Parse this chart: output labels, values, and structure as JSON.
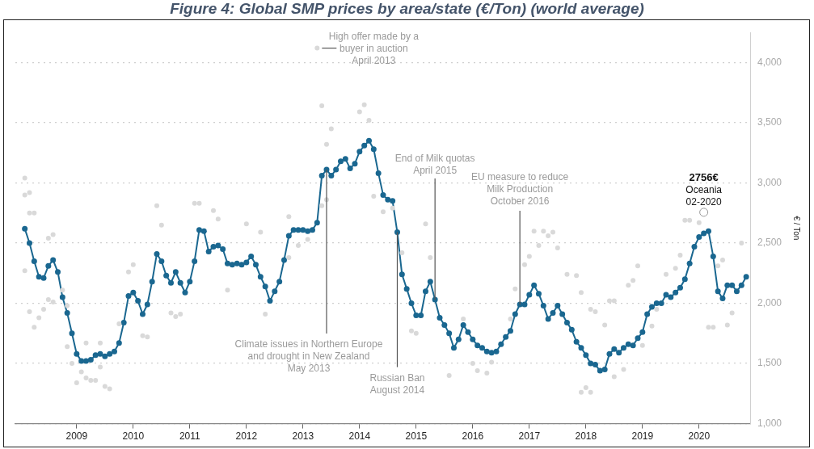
{
  "chart_data": {
    "type": "line",
    "title": "Figure 4: Global SMP prices by area/state (€/Ton) (world average)",
    "ylabel": "€ / Ton",
    "x": [
      "2008-02",
      "2008-03",
      "2008-04",
      "2008-05",
      "2008-06",
      "2008-07",
      "2008-08",
      "2008-09",
      "2008-10",
      "2008-11",
      "2008-12",
      "2009-01",
      "2009-02",
      "2009-03",
      "2009-04",
      "2009-05",
      "2009-06",
      "2009-07",
      "2009-08",
      "2009-09",
      "2009-10",
      "2009-11",
      "2009-12",
      "2010-01",
      "2010-02",
      "2010-03",
      "2010-04",
      "2010-05",
      "2010-06",
      "2010-07",
      "2010-08",
      "2010-09",
      "2010-10",
      "2010-11",
      "2010-12",
      "2011-01",
      "2011-02",
      "2011-03",
      "2011-04",
      "2011-05",
      "2011-06",
      "2011-07",
      "2011-08",
      "2011-09",
      "2011-10",
      "2011-11",
      "2011-12",
      "2012-01",
      "2012-02",
      "2012-03",
      "2012-04",
      "2012-05",
      "2012-06",
      "2012-07",
      "2012-08",
      "2012-09",
      "2012-10",
      "2012-11",
      "2012-12",
      "2013-01",
      "2013-02",
      "2013-03",
      "2013-04",
      "2013-05",
      "2013-06",
      "2013-07",
      "2013-08",
      "2013-09",
      "2013-10",
      "2013-11",
      "2013-12",
      "2014-01",
      "2014-02",
      "2014-03",
      "2014-04",
      "2014-05",
      "2014-06",
      "2014-07",
      "2014-08",
      "2014-09",
      "2014-10",
      "2014-11",
      "2014-12",
      "2015-01",
      "2015-02",
      "2015-03",
      "2015-04",
      "2015-05",
      "2015-06",
      "2015-07",
      "2015-08",
      "2015-09",
      "2015-10",
      "2015-11",
      "2015-12",
      "2016-01",
      "2016-02",
      "2016-03",
      "2016-04",
      "2016-05",
      "2016-06",
      "2016-07",
      "2016-08",
      "2016-09",
      "2016-10",
      "2016-11",
      "2016-12",
      "2017-01",
      "2017-02",
      "2017-03",
      "2017-04",
      "2017-05",
      "2017-06",
      "2017-07",
      "2017-08",
      "2017-09",
      "2017-10",
      "2017-11",
      "2017-12",
      "2018-01",
      "2018-02",
      "2018-03",
      "2018-04",
      "2018-05",
      "2018-06",
      "2018-07",
      "2018-08",
      "2018-09",
      "2018-10",
      "2018-11",
      "2018-12",
      "2019-01",
      "2019-02",
      "2019-03",
      "2019-04",
      "2019-05",
      "2019-06",
      "2019-07",
      "2019-08",
      "2019-09",
      "2019-10",
      "2019-11",
      "2019-12",
      "2020-01",
      "2020-02",
      "2020-03",
      "2020-04",
      "2020-05",
      "2020-06",
      "2020-07",
      "2020-08",
      "2020-09",
      "2020-10",
      "2020-11"
    ],
    "series": [
      {
        "type": "scatter",
        "color": "#d9d9d9",
        "x": [
          "2008-02",
          "2008-02",
          "2008-03",
          "2008-03",
          "2008-04",
          "2008-02",
          "2008-03",
          "2008-04",
          "2008-05",
          "2008-06",
          "2008-07",
          "2008-08",
          "2008-07",
          "2008-08",
          "2008-10",
          "2008-11",
          "2008-11",
          "2008-12",
          "2009-01",
          "2009-02",
          "2009-03",
          "2009-04",
          "2009-05",
          "2009-06",
          "2009-07",
          "2009-08",
          "2009-03",
          "2009-06",
          "2009-10",
          "2009-12",
          "2010-01",
          "2010-03",
          "2010-04",
          "2010-06",
          "2010-07",
          "2010-09",
          "2010-10",
          "2010-11",
          "2011-02",
          "2011-03",
          "2011-06",
          "2011-07",
          "2011-09",
          "2012-01",
          "2012-04",
          "2012-05",
          "2013-04",
          "2013-05",
          "2014-02",
          "2014-01",
          "2014-03",
          "2013-07",
          "2013-06",
          "2013-05",
          "2013-06",
          "2012-10",
          "2012-12",
          "2013-02",
          "2012-10",
          "2014-04",
          "2014-06",
          "2014-08",
          "2014-10",
          "2014-12",
          "2015-01",
          "2015-03",
          "2015-04",
          "2015-08",
          "2015-11",
          "2016-01",
          "2016-02",
          "2016-04",
          "2016-05",
          "2016-12",
          "2016-10",
          "2016-09",
          "2017-02",
          "2017-04",
          "2017-05",
          "2017-06",
          "2017-07",
          "2017-03",
          "2017-01",
          "2017-09",
          "2017-11",
          "2017-12",
          "2018-02",
          "2018-03",
          "2017-12",
          "2018-02",
          "2018-01",
          "2018-05",
          "2018-06",
          "2018-07",
          "2018-07",
          "2018-09",
          "2018-10",
          "2018-11",
          "2018-12",
          "2019-01",
          "2019-03",
          "2019-04",
          "2019-06",
          "2019-08",
          "2019-09",
          "2019-10",
          "2019-11",
          "2020-01",
          "2020-03",
          "2020-04",
          "2020-05",
          "2020-06",
          "2020-07",
          "2020-08",
          "2020-10"
        ],
        "values": [
          3040,
          2900,
          2920,
          2750,
          2750,
          2270,
          1930,
          1800,
          1880,
          1950,
          2540,
          2570,
          2030,
          2010,
          2110,
          1980,
          1640,
          1500,
          1340,
          1430,
          1380,
          1360,
          1360,
          1470,
          1310,
          1290,
          1670,
          1670,
          1830,
          2260,
          2320,
          1730,
          1720,
          2810,
          2650,
          1920,
          1890,
          1910,
          2830,
          2830,
          2770,
          2700,
          2110,
          2660,
          2590,
          1910,
          4120,
          3640,
          3650,
          3590,
          3520,
          3450,
          3320,
          2810,
          2860,
          2720,
          2480,
          2530,
          2380,
          2890,
          2760,
          2790,
          2420,
          1770,
          1750,
          2660,
          2380,
          1400,
          1870,
          1500,
          1440,
          1420,
          1510,
          2320,
          2120,
          1870,
          2600,
          2600,
          2560,
          2590,
          2460,
          2480,
          2390,
          2240,
          2230,
          2090,
          1950,
          1930,
          1260,
          1260,
          1300,
          1820,
          2020,
          2020,
          1390,
          1450,
          2150,
          2190,
          2310,
          1650,
          1810,
          1950,
          2240,
          2290,
          2400,
          2690,
          2690,
          2670,
          1800,
          1800,
          2310,
          2360,
          1820,
          1920,
          2500
        ]
      },
      {
        "type": "scatter",
        "color": "#999999",
        "x": [
          "2020-02"
        ],
        "values": [
          2756
        ]
      },
      {
        "color": "#1a6790",
        "values": [
          2620,
          2500,
          2350,
          2220,
          2210,
          2310,
          2360,
          2260,
          2050,
          1920,
          1750,
          1580,
          1520,
          1520,
          1530,
          1570,
          1580,
          1560,
          1580,
          1600,
          1670,
          1840,
          2060,
          2090,
          2020,
          1910,
          1990,
          2180,
          2410,
          2350,
          2230,
          2170,
          2260,
          2170,
          2090,
          2180,
          2350,
          2610,
          2600,
          2430,
          2470,
          2480,
          2450,
          2330,
          2320,
          2330,
          2320,
          2340,
          2390,
          2320,
          2220,
          2140,
          2020,
          2100,
          2180,
          2360,
          2560,
          2610,
          2610,
          2610,
          2600,
          2610,
          2670,
          3060,
          3110,
          3060,
          3110,
          3180,
          3200,
          3120,
          3160,
          3260,
          3310,
          3350,
          3280,
          3080,
          2900,
          2860,
          2850,
          2590,
          2240,
          2120,
          2000,
          1900,
          1900,
          2100,
          2180,
          2030,
          1880,
          1820,
          1750,
          1630,
          1700,
          1820,
          1760,
          1700,
          1650,
          1630,
          1600,
          1590,
          1600,
          1660,
          1720,
          1770,
          1910,
          1990,
          1990,
          2070,
          2150,
          2080,
          1980,
          1870,
          1920,
          1980,
          1910,
          1840,
          1780,
          1680,
          1630,
          1570,
          1500,
          1490,
          1440,
          1450,
          1580,
          1620,
          1590,
          1630,
          1660,
          1650,
          1710,
          1760,
          1910,
          1970,
          2000,
          2000,
          2070,
          2050,
          2090,
          2130,
          2200,
          2330,
          2470,
          2550,
          2580,
          2600,
          2390,
          2100,
          2040,
          2150,
          2150,
          2100,
          2150,
          2220
        ]
      }
    ],
    "marker": "circle",
    "xlim": [
      "2007-12",
      "2020-12"
    ],
    "xticks": [
      "2009",
      "2010",
      "2011",
      "2012",
      "2013",
      "2014",
      "2015",
      "2016",
      "2017",
      "2018",
      "2019",
      "2020"
    ],
    "ylim": [
      1000,
      4250
    ],
    "yticks": [
      {
        "value": 1000,
        "label": "1,000"
      },
      {
        "value": 1500,
        "label": "1,500"
      },
      {
        "value": 2000,
        "label": "2,000"
      },
      {
        "value": 2500,
        "label": "2,500"
      },
      {
        "value": 3000,
        "label": "3,000"
      },
      {
        "value": 3500,
        "label": "3,500"
      },
      {
        "value": 4000,
        "label": "4,000"
      }
    ],
    "grid": "y",
    "annotations": [
      {
        "text": "High offer made by a\nbuyer in auction\nApril 2013",
        "x": "2013-04",
        "y": 4120
      },
      {
        "text": "Climate issues in Northern Europe\nand drought in New Zealand\nMay 2013",
        "x": "2013-06",
        "y": 3110
      },
      {
        "text": "Russian Ban\nAugust 2014",
        "x": "2014-09",
        "y": 2590
      },
      {
        "text": "End of Milk quotas\nApril 2015",
        "x": "2015-05",
        "y": 2030
      },
      {
        "text": "EU measure to reduce\nMilk Production\nOctober 2016",
        "x": "2016-11",
        "y": 1990
      },
      {
        "text": "2756€\nOceania\n02-2020",
        "x": "2020-02",
        "y": 2756
      }
    ]
  }
}
